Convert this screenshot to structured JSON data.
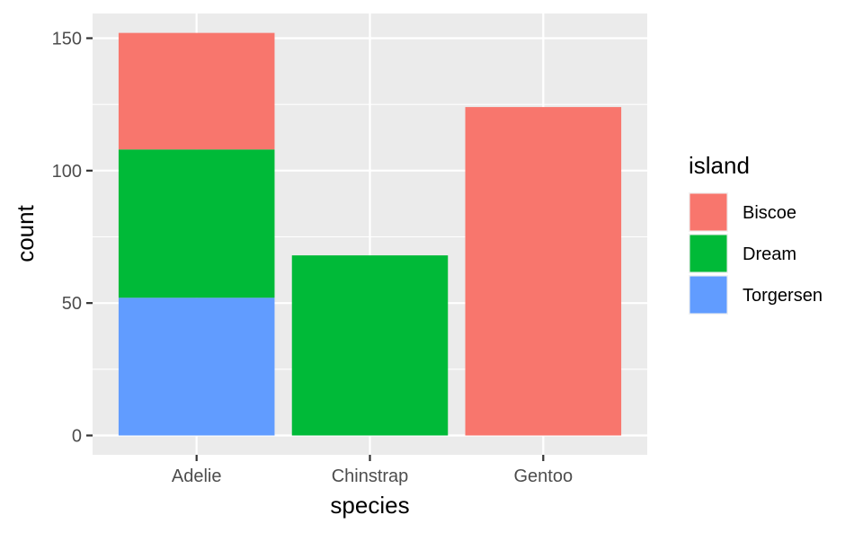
{
  "chart_data": {
    "type": "bar",
    "stacked": true,
    "categories": [
      "Adelie",
      "Chinstrap",
      "Gentoo"
    ],
    "series": [
      {
        "name": "Biscoe",
        "color": "#F8766D",
        "values": [
          44,
          0,
          124
        ]
      },
      {
        "name": "Dream",
        "color": "#00BA38",
        "values": [
          56,
          68,
          0
        ]
      },
      {
        "name": "Torgersen",
        "color": "#619CFF",
        "values": [
          52,
          0,
          0
        ]
      }
    ],
    "xlabel": "species",
    "ylabel": "count",
    "ylim": [
      0,
      159.6
    ],
    "yticks": [
      0,
      50,
      100,
      150
    ],
    "ytick_labels": [
      "0",
      "50",
      "100",
      "150"
    ],
    "legend": {
      "title": "island",
      "position": "right"
    },
    "grid": true,
    "panel_background": "#EBEBEB"
  }
}
